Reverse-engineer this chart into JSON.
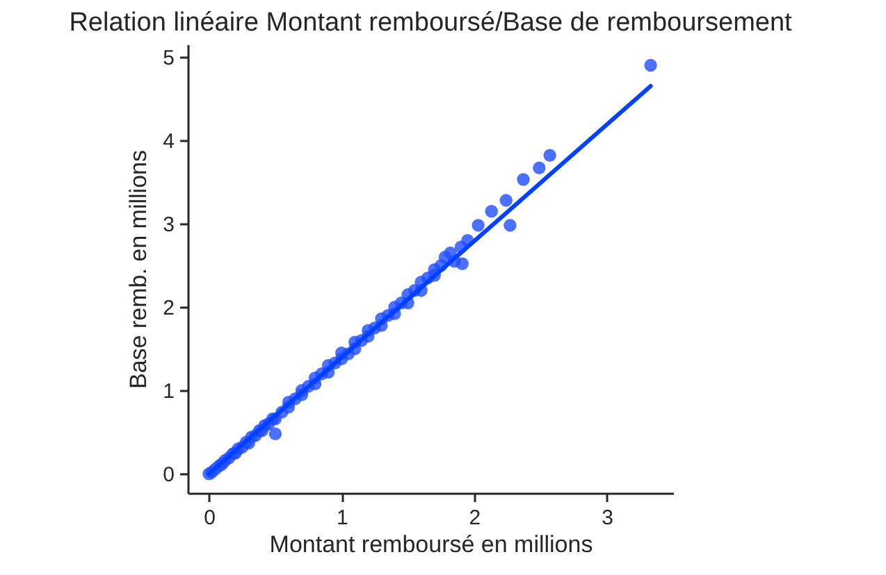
{
  "chart_data": {
    "type": "scatter",
    "title": "Relation linéaire Montant remboursé/Base de remboursement",
    "xlabel": "Montant remboursé en millions",
    "ylabel": "Base remb. en millions",
    "xlim": [
      -0.16,
      3.5
    ],
    "xticks": [
      0,
      1,
      2,
      3
    ],
    "ylim": [
      -0.23,
      5.15
    ],
    "yticks": [
      0,
      1,
      2,
      3,
      4,
      5
    ],
    "series": [
      {
        "color": "#1f4cff",
        "marker": "circle",
        "x": [
          0,
          0.02,
          0.05,
          0.08,
          0.1,
          0.12,
          0.15,
          0.18,
          0.2,
          0.22,
          0.25,
          0.28,
          0.3,
          0.32,
          0.35,
          0.38,
          0.4,
          0.42,
          0.45,
          0.48,
          0.5,
          0.5,
          0.55,
          0.6,
          0.6,
          0.65,
          0.7,
          0.7,
          0.75,
          0.8,
          0.8,
          0.85,
          0.9,
          0.9,
          0.95,
          1.0,
          1.0,
          1.05,
          1.1,
          1.1,
          1.15,
          1.2,
          1.2,
          1.25,
          1.3,
          1.3,
          1.35,
          1.4,
          1.4,
          1.45,
          1.5,
          1.5,
          1.55,
          1.6,
          1.6,
          1.65,
          1.7,
          1.7,
          1.75,
          1.78,
          1.82,
          1.85,
          1.9,
          1.91,
          1.95,
          2.03,
          2.13,
          2.24,
          2.27,
          2.37,
          2.49,
          2.57,
          3.33
        ],
        "values": [
          0,
          0.02,
          0.06,
          0.1,
          0.12,
          0.16,
          0.19,
          0.24,
          0.25,
          0.3,
          0.32,
          0.38,
          0.37,
          0.44,
          0.46,
          0.52,
          0.52,
          0.58,
          0.6,
          0.66,
          0.66,
          0.48,
          0.74,
          0.8,
          0.86,
          0.9,
          0.95,
          1.0,
          1.05,
          1.08,
          1.15,
          1.2,
          1.22,
          1.3,
          1.33,
          1.38,
          1.45,
          1.44,
          1.5,
          1.58,
          1.6,
          1.65,
          1.72,
          1.75,
          1.78,
          1.86,
          1.9,
          1.92,
          2.0,
          2.05,
          2.05,
          2.15,
          2.2,
          2.2,
          2.3,
          2.35,
          2.38,
          2.45,
          2.5,
          2.6,
          2.65,
          2.55,
          2.72,
          2.52,
          2.8,
          2.98,
          3.15,
          3.28,
          2.98,
          3.53,
          3.67,
          3.82,
          4.9
        ]
      },
      {
        "type": "line",
        "color": "#0040ff",
        "marker": "none",
        "x": [
          0,
          3.33
        ],
        "values": [
          0,
          4.65
        ]
      }
    ]
  }
}
